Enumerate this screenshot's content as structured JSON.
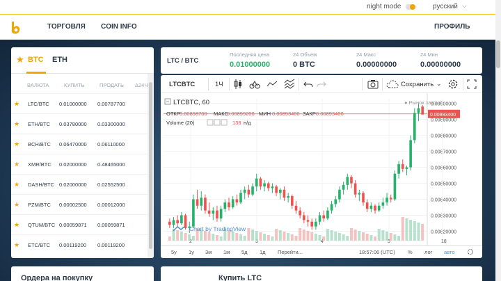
{
  "topbar": {
    "night_mode": "night mode",
    "language": "русский"
  },
  "nav": {
    "trade": "ТОРГОВЛЯ",
    "coin_info": "COIN INFO",
    "profile": "ПРОФИЛЬ"
  },
  "markets": {
    "tab_btc": "BTC",
    "tab_eth": "ETH",
    "columns": [
      "ВАЛЮТА",
      "КУПИТЬ",
      "ПРОДАТЬ",
      "Δ24Ч"
    ],
    "rows": [
      {
        "pair": "LTC/BTC",
        "buy": "0.01000000",
        "sell": "0.00787700"
      },
      {
        "pair": "ETH/BTC",
        "buy": "0.03780000",
        "sell": "0.03300000"
      },
      {
        "pair": "BCH/BTC",
        "buy": "0.06470000",
        "sell": "0.06110000"
      },
      {
        "pair": "XMR/BTC",
        "buy": "0.02000000",
        "sell": "0.48465000"
      },
      {
        "pair": "DASH/BTC",
        "buy": "0.02000000",
        "sell": "0.02552500"
      },
      {
        "pair": "PZM/BTC",
        "buy": "0.00002500",
        "sell": "0.00012000"
      },
      {
        "pair": "QTUM/BTC",
        "buy": "0.00059871",
        "sell": "0.00059871"
      },
      {
        "pair": "ETC/BTC",
        "buy": "0.00119200",
        "sell": "0.00119200"
      }
    ]
  },
  "stats": {
    "pair": "LTC / BTC",
    "last_label": "Последняя цена",
    "last_value": "0.01000000",
    "volume_label": "24 Объем",
    "volume_value": "0 BTC",
    "max_label": "24 Макс",
    "max_value": "0.00000000",
    "min_label": "24 Мин",
    "min_value": "0.00000000"
  },
  "toolbar": {
    "symbol": "LTCBTC",
    "interval": "1Ч",
    "save": "Сохранить"
  },
  "chart_legend": {
    "title": "LTCBTC, 60",
    "market_status": "● Рынок закрыт",
    "ohlc_open_label": "ОТКР",
    "ohlc_open": "0.00898700",
    "ohlc_high_label": "МАКС",
    "ohlc_high": "0.00899200",
    "ohlc_low_label": "МИН",
    "ohlc_low": "0.00893400",
    "ohlc_close_label": "ЗАКР",
    "ohlc_close": "0.00893400",
    "volume_label": "Volume (20)",
    "volume_value": "138",
    "volume_na": "н/д",
    "watermark": "Chart by TradingView",
    "price_tag": "0.00893400"
  },
  "bottom_bar": {
    "ranges": [
      "5y",
      "1y",
      "3м",
      "1м",
      "5д",
      "1д"
    ],
    "goto": "Перейти...",
    "time": "18:57:06 (UTC)",
    "pct": "%",
    "log": "лог",
    "auto": "авто"
  },
  "bottom_panels": {
    "buy_orders": "Ордера на покупку",
    "buy_ltc": "Купить LTC"
  },
  "colors": {
    "accent": "#f0a500",
    "up": "#27b26b",
    "down": "#ef5350",
    "text": "#2d3a4a"
  },
  "chart_data": {
    "type": "candlestick",
    "title": "LTCBTC, 60",
    "x_ticks": [
      "2",
      "3",
      "4",
      "5",
      "18"
    ],
    "y_ticks": [
      "0.00900000",
      "0.00890000",
      "0.00880000",
      "0.00870000",
      "0.00860000",
      "0.00850000",
      "0.00840000",
      "0.00830000",
      "0.00820000"
    ],
    "ylim": [
      0.00815,
      0.00902
    ],
    "candles": [
      [
        0.00826,
        0.00828,
        0.00822,
        0.00824
      ],
      [
        0.00824,
        0.00829,
        0.00822,
        0.00827
      ],
      [
        0.00827,
        0.0083,
        0.00823,
        0.00825
      ],
      [
        0.00825,
        0.00832,
        0.00824,
        0.0083
      ],
      [
        0.0083,
        0.00831,
        0.00821,
        0.00822
      ],
      [
        0.00822,
        0.00826,
        0.00819,
        0.00823
      ],
      [
        0.00823,
        0.00843,
        0.00822,
        0.0084
      ],
      [
        0.0084,
        0.00846,
        0.00834,
        0.00836
      ],
      [
        0.00836,
        0.00845,
        0.00833,
        0.00841
      ],
      [
        0.00841,
        0.00843,
        0.00831,
        0.00833
      ],
      [
        0.00833,
        0.00838,
        0.00829,
        0.00831
      ],
      [
        0.00831,
        0.00835,
        0.00827,
        0.00833
      ],
      [
        0.00833,
        0.00836,
        0.00826,
        0.00828
      ],
      [
        0.00828,
        0.00836,
        0.00826,
        0.00834
      ],
      [
        0.00834,
        0.0084,
        0.00832,
        0.00838
      ],
      [
        0.00838,
        0.00841,
        0.00833,
        0.00835
      ],
      [
        0.00835,
        0.00842,
        0.00834,
        0.0084
      ],
      [
        0.0084,
        0.00843,
        0.00836,
        0.00838
      ],
      [
        0.00838,
        0.00846,
        0.00837,
        0.00844
      ],
      [
        0.00844,
        0.00848,
        0.0084,
        0.00846
      ],
      [
        0.00846,
        0.00849,
        0.00841,
        0.00843
      ],
      [
        0.00843,
        0.0085,
        0.00842,
        0.00848
      ],
      [
        0.00848,
        0.00856,
        0.00845,
        0.00853
      ],
      [
        0.00853,
        0.00854,
        0.00846,
        0.00848
      ],
      [
        0.00848,
        0.00852,
        0.00845,
        0.0085
      ],
      [
        0.0085,
        0.00851,
        0.00845,
        0.00847
      ],
      [
        0.00847,
        0.0085,
        0.00844,
        0.00848
      ],
      [
        0.00848,
        0.00849,
        0.00842,
        0.00844
      ],
      [
        0.00844,
        0.00847,
        0.0084,
        0.00846
      ],
      [
        0.00846,
        0.00848,
        0.00839,
        0.00841
      ],
      [
        0.00841,
        0.00844,
        0.00838,
        0.00842
      ],
      [
        0.00842,
        0.00843,
        0.00834,
        0.00836
      ],
      [
        0.00836,
        0.00839,
        0.00831,
        0.00833
      ],
      [
        0.00833,
        0.00835,
        0.00828,
        0.0083
      ],
      [
        0.0083,
        0.00832,
        0.00825,
        0.00827
      ],
      [
        0.00827,
        0.0083,
        0.00823,
        0.00826
      ],
      [
        0.00826,
        0.00828,
        0.00821,
        0.00823
      ],
      [
        0.00823,
        0.00828,
        0.00821,
        0.00826
      ],
      [
        0.00826,
        0.00832,
        0.00824,
        0.0083
      ],
      [
        0.0083,
        0.00833,
        0.00826,
        0.00828
      ],
      [
        0.00828,
        0.00835,
        0.00827,
        0.00833
      ],
      [
        0.00833,
        0.00839,
        0.00831,
        0.00837
      ],
      [
        0.00837,
        0.00842,
        0.00835,
        0.0084
      ],
      [
        0.0084,
        0.00848,
        0.00838,
        0.00846
      ],
      [
        0.00846,
        0.00851,
        0.00843,
        0.00849
      ],
      [
        0.00849,
        0.00856,
        0.00846,
        0.00854
      ],
      [
        0.00854,
        0.00855,
        0.00847,
        0.0085
      ],
      [
        0.0085,
        0.00852,
        0.00841,
        0.00843
      ],
      [
        0.00843,
        0.00846,
        0.00839,
        0.00844
      ],
      [
        0.00844,
        0.00845,
        0.00836,
        0.00838
      ],
      [
        0.00838,
        0.0084,
        0.00832,
        0.00834
      ],
      [
        0.00834,
        0.00838,
        0.00832,
        0.00836
      ],
      [
        0.00836,
        0.00837,
        0.00831,
        0.00833
      ],
      [
        0.00833,
        0.00838,
        0.00832,
        0.00836
      ],
      [
        0.00836,
        0.00841,
        0.00834,
        0.00838
      ],
      [
        0.00838,
        0.00844,
        0.00836,
        0.00841
      ],
      [
        0.00841,
        0.00843,
        0.00838,
        0.0084
      ],
      [
        0.0084,
        0.00858,
        0.00839,
        0.00856
      ],
      [
        0.00856,
        0.00864,
        0.00853,
        0.00862
      ],
      [
        0.00862,
        0.00865,
        0.00857,
        0.00859
      ],
      [
        0.00859,
        0.00861,
        0.00855,
        0.0086
      ],
      [
        0.0086,
        0.0088,
        0.00858,
        0.00877
      ],
      [
        0.00877,
        0.00897,
        0.00875,
        0.00894
      ],
      [
        0.00894,
        0.009,
        0.00889,
        0.00897
      ],
      [
        0.00898,
        0.00899,
        0.00893,
        0.00893
      ]
    ]
  }
}
